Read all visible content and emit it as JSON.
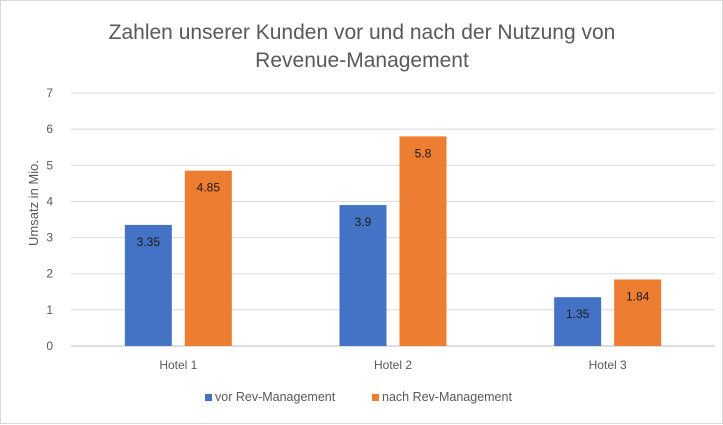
{
  "chart_data": {
    "type": "bar",
    "title_line1": "Zahlen unserer Kunden vor und nach der Nutzung von",
    "title_line2": "Revenue-Management",
    "ylabel": "Umsatz in Mio.",
    "xlabel": "",
    "ylim": [
      0,
      7
    ],
    "yticks": [
      0,
      1,
      2,
      3,
      4,
      5,
      6,
      7
    ],
    "categories": [
      "Hotel 1",
      "Hotel 2",
      "Hotel 3"
    ],
    "series": [
      {
        "name": "vor Rev-Management",
        "values": [
          3.35,
          3.9,
          1.35
        ],
        "color": "#4472c4"
      },
      {
        "name": "nach Rev-Management",
        "values": [
          4.85,
          5.8,
          1.84
        ],
        "color": "#ed7d31"
      }
    ],
    "grid": true,
    "legend_position": "bottom"
  }
}
